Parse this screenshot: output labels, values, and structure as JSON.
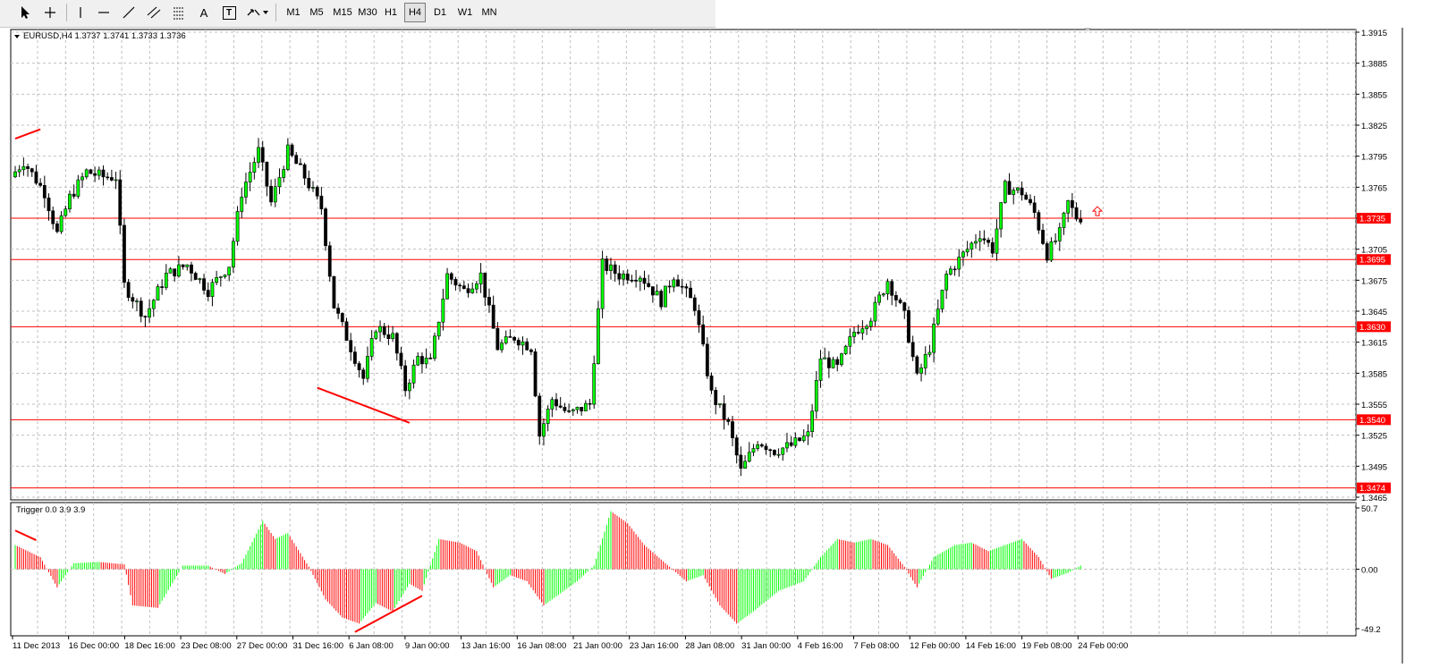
{
  "toolbar": {
    "timeframes": [
      "M1",
      "M5",
      "M15",
      "M30",
      "H1",
      "H4",
      "D1",
      "W1",
      "MN"
    ],
    "active_timeframe": "H4",
    "tools": [
      "cursor-icon",
      "crosshair-icon",
      "vertical-line-icon",
      "horizontal-line-icon",
      "trendline-icon",
      "channel-icon",
      "fibonacci-icon",
      "text-icon",
      "label-icon",
      "arrows-icon"
    ],
    "text_tool_label": "A",
    "label_tool_label": "T"
  },
  "chart_data": [
    {
      "type": "candlestick",
      "title": "EURUSD,H4",
      "ohlc_text": "1.3737 1.3741 1.3733 1.3736",
      "ylim": [
        1.3465,
        1.3915
      ],
      "y_ticks": [
        "1.3915",
        "1.3885",
        "1.3855",
        "1.3825",
        "1.3795",
        "1.3765",
        "1.3735",
        "1.3705",
        "1.3675",
        "1.3645",
        "1.3615",
        "1.3585",
        "1.3555",
        "1.3525",
        "1.3495",
        "1.3465"
      ],
      "x_ticks": [
        "11 Dec 2013",
        "16 Dec 00:00",
        "18 Dec 16:00",
        "23 Dec 08:00",
        "27 Dec 00:00",
        "31 Dec 16:00",
        "6 Jan 08:00",
        "9 Jan 00:00",
        "13 Jan 16:00",
        "16 Jan 08:00",
        "21 Jan 00:00",
        "23 Jan 16:00",
        "28 Jan 08:00",
        "31 Jan 00:00",
        "4 Feb 16:00",
        "7 Feb 08:00",
        "12 Feb 00:00",
        "14 Feb 16:00",
        "19 Feb 08:00",
        "24 Feb 00:00"
      ],
      "horizontal_levels": [
        1.3735,
        1.3695,
        1.363,
        1.354,
        1.3474
      ],
      "level_labels": [
        "1.3735",
        "1.3695",
        "1.3630",
        "1.3540",
        "1.3474"
      ],
      "anchors": [
        {
          "t": 0,
          "p": 1.3775
        },
        {
          "t": 3,
          "p": 1.379
        },
        {
          "t": 8,
          "p": 1.376
        },
        {
          "t": 11,
          "p": 1.372
        },
        {
          "t": 14,
          "p": 1.3755
        },
        {
          "t": 18,
          "p": 1.378
        },
        {
          "t": 22,
          "p": 1.3775
        },
        {
          "t": 25,
          "p": 1.3775
        },
        {
          "t": 27,
          "p": 1.367
        },
        {
          "t": 32,
          "p": 1.364
        },
        {
          "t": 37,
          "p": 1.368
        },
        {
          "t": 42,
          "p": 1.369
        },
        {
          "t": 47,
          "p": 1.3665
        },
        {
          "t": 52,
          "p": 1.369
        },
        {
          "t": 55,
          "p": 1.376
        },
        {
          "t": 59,
          "p": 1.38
        },
        {
          "t": 62,
          "p": 1.375
        },
        {
          "t": 66,
          "p": 1.38
        },
        {
          "t": 70,
          "p": 1.3775
        },
        {
          "t": 74,
          "p": 1.3745
        },
        {
          "t": 77,
          "p": 1.365
        },
        {
          "t": 81,
          "p": 1.361
        },
        {
          "t": 84,
          "p": 1.358
        },
        {
          "t": 87,
          "p": 1.363
        },
        {
          "t": 91,
          "p": 1.362
        },
        {
          "t": 94,
          "p": 1.357
        },
        {
          "t": 97,
          "p": 1.36
        },
        {
          "t": 100,
          "p": 1.3595
        },
        {
          "t": 104,
          "p": 1.368
        },
        {
          "t": 108,
          "p": 1.3665
        },
        {
          "t": 112,
          "p": 1.368
        },
        {
          "t": 116,
          "p": 1.361
        },
        {
          "t": 120,
          "p": 1.362
        },
        {
          "t": 124,
          "p": 1.361
        },
        {
          "t": 126,
          "p": 1.3525
        },
        {
          "t": 129,
          "p": 1.356
        },
        {
          "t": 133,
          "p": 1.3545
        },
        {
          "t": 138,
          "p": 1.3555
        },
        {
          "t": 141,
          "p": 1.369
        },
        {
          "t": 145,
          "p": 1.368
        },
        {
          "t": 150,
          "p": 1.368
        },
        {
          "t": 155,
          "p": 1.3655
        },
        {
          "t": 158,
          "p": 1.368
        },
        {
          "t": 163,
          "p": 1.365
        },
        {
          "t": 167,
          "p": 1.3565
        },
        {
          "t": 171,
          "p": 1.3535
        },
        {
          "t": 174,
          "p": 1.349
        },
        {
          "t": 178,
          "p": 1.352
        },
        {
          "t": 182,
          "p": 1.351
        },
        {
          "t": 186,
          "p": 1.3515
        },
        {
          "t": 190,
          "p": 1.3525
        },
        {
          "t": 193,
          "p": 1.36
        },
        {
          "t": 197,
          "p": 1.359
        },
        {
          "t": 201,
          "p": 1.3625
        },
        {
          "t": 205,
          "p": 1.364
        },
        {
          "t": 209,
          "p": 1.3675
        },
        {
          "t": 213,
          "p": 1.364
        },
        {
          "t": 216,
          "p": 1.358
        },
        {
          "t": 219,
          "p": 1.361
        },
        {
          "t": 223,
          "p": 1.368
        },
        {
          "t": 227,
          "p": 1.37
        },
        {
          "t": 231,
          "p": 1.372
        },
        {
          "t": 234,
          "p": 1.3705
        },
        {
          "t": 237,
          "p": 1.3765
        },
        {
          "t": 241,
          "p": 1.376
        },
        {
          "t": 244,
          "p": 1.374
        },
        {
          "t": 247,
          "p": 1.37
        },
        {
          "t": 250,
          "p": 1.372
        },
        {
          "t": 252,
          "p": 1.375
        },
        {
          "t": 254,
          "p": 1.3736
        }
      ],
      "trendlines": [
        {
          "from": {
            "t": 0,
            "p": 1.3812
          },
          "to": {
            "t": 6,
            "p": 1.3821
          }
        },
        {
          "from": {
            "t": 72,
            "p": 1.3571
          },
          "to": {
            "t": 94,
            "p": 1.3537
          }
        }
      ],
      "signal_arrow": {
        "t": 258,
        "p": 1.3741
      }
    },
    {
      "type": "histogram",
      "title": "Trigger 0.0 3.9 3.9",
      "ylim": [
        -49.2,
        50.7
      ],
      "y_ticks": [
        "50.7",
        "0.00",
        "-49.2"
      ],
      "anchors": [
        {
          "t": 0,
          "v": 20
        },
        {
          "t": 6,
          "v": 10
        },
        {
          "t": 10,
          "v": -15
        },
        {
          "t": 14,
          "v": 5
        },
        {
          "t": 20,
          "v": 6
        },
        {
          "t": 26,
          "v": 4
        },
        {
          "t": 28,
          "v": -30
        },
        {
          "t": 34,
          "v": -32
        },
        {
          "t": 40,
          "v": 3
        },
        {
          "t": 46,
          "v": 3
        },
        {
          "t": 50,
          "v": -4
        },
        {
          "t": 54,
          "v": 5
        },
        {
          "t": 59,
          "v": 40
        },
        {
          "t": 62,
          "v": 25
        },
        {
          "t": 65,
          "v": 30
        },
        {
          "t": 70,
          "v": 2
        },
        {
          "t": 74,
          "v": -25
        },
        {
          "t": 78,
          "v": -40
        },
        {
          "t": 82,
          "v": -45
        },
        {
          "t": 86,
          "v": -28
        },
        {
          "t": 90,
          "v": -35
        },
        {
          "t": 94,
          "v": -12
        },
        {
          "t": 97,
          "v": -18
        },
        {
          "t": 101,
          "v": 25
        },
        {
          "t": 106,
          "v": 22
        },
        {
          "t": 110,
          "v": 15
        },
        {
          "t": 114,
          "v": -15
        },
        {
          "t": 118,
          "v": -5
        },
        {
          "t": 122,
          "v": -10
        },
        {
          "t": 126,
          "v": -30
        },
        {
          "t": 130,
          "v": -20
        },
        {
          "t": 134,
          "v": -10
        },
        {
          "t": 138,
          "v": 3
        },
        {
          "t": 142,
          "v": 48
        },
        {
          "t": 146,
          "v": 38
        },
        {
          "t": 150,
          "v": 20
        },
        {
          "t": 156,
          "v": 2
        },
        {
          "t": 160,
          "v": -10
        },
        {
          "t": 164,
          "v": -5
        },
        {
          "t": 168,
          "v": -30
        },
        {
          "t": 172,
          "v": -45
        },
        {
          "t": 176,
          "v": -35
        },
        {
          "t": 182,
          "v": -18
        },
        {
          "t": 188,
          "v": -10
        },
        {
          "t": 192,
          "v": 10
        },
        {
          "t": 196,
          "v": 25
        },
        {
          "t": 200,
          "v": 22
        },
        {
          "t": 204,
          "v": 25
        },
        {
          "t": 208,
          "v": 20
        },
        {
          "t": 212,
          "v": 2
        },
        {
          "t": 215,
          "v": -15
        },
        {
          "t": 219,
          "v": 10
        },
        {
          "t": 224,
          "v": 20
        },
        {
          "t": 228,
          "v": 22
        },
        {
          "t": 232,
          "v": 15
        },
        {
          "t": 236,
          "v": 20
        },
        {
          "t": 240,
          "v": 25
        },
        {
          "t": 244,
          "v": 10
        },
        {
          "t": 247,
          "v": -8
        },
        {
          "t": 251,
          "v": -3
        },
        {
          "t": 254,
          "v": 3
        }
      ],
      "trendlines": [
        {
          "from": {
            "t": 0,
            "v": 32
          },
          "to": {
            "t": 5,
            "v": 24
          }
        },
        {
          "from": {
            "t": 81,
            "v": -52
          },
          "to": {
            "t": 97,
            "v": -22
          }
        }
      ]
    }
  ],
  "colors": {
    "up": "#00ff00",
    "down": "#ff0000",
    "candle_up_body": "#00ff00",
    "candle_outline": "#000000",
    "grid": "#c0c0c0",
    "level": "#ff0000",
    "label_bg": "#ff0000",
    "label_text": "#ffffff"
  }
}
